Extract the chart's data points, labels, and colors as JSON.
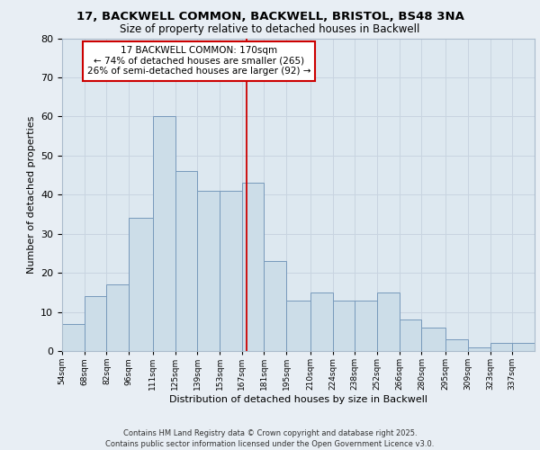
{
  "title_line1": "17, BACKWELL COMMON, BACKWELL, BRISTOL, BS48 3NA",
  "title_line2": "Size of property relative to detached houses in Backwell",
  "xlabel": "Distribution of detached houses by size in Backwell",
  "ylabel": "Number of detached properties",
  "footer": "Contains HM Land Registry data © Crown copyright and database right 2025.\nContains public sector information licensed under the Open Government Licence v3.0.",
  "annotation_title": "17 BACKWELL COMMON: 170sqm",
  "annotation_line2": "← 74% of detached houses are smaller (265)",
  "annotation_line3": "26% of semi-detached houses are larger (92) →",
  "property_size": 170,
  "bar_left_edges": [
    54,
    68,
    82,
    96,
    111,
    125,
    139,
    153,
    167,
    181,
    195,
    210,
    224,
    238,
    252,
    266,
    280,
    295,
    309,
    323,
    337
  ],
  "bar_heights": [
    7,
    14,
    17,
    34,
    60,
    46,
    41,
    41,
    43,
    23,
    13,
    15,
    13,
    13,
    15,
    8,
    6,
    3,
    1,
    2,
    2
  ],
  "bar_color": "#ccdde8",
  "bar_edge_color": "#7799bb",
  "vline_x": 170,
  "vline_color": "#cc0000",
  "grid_color": "#c8d4e0",
  "bg_color": "#dde8f0",
  "fig_bg_color": "#e8eef4",
  "ylim": [
    0,
    80
  ],
  "yticks": [
    0,
    10,
    20,
    30,
    40,
    50,
    60,
    70,
    80
  ],
  "annotation_box_color": "#ffffff",
  "annotation_border_color": "#cc0000",
  "tick_labels": [
    "54sqm",
    "68sqm",
    "82sqm",
    "96sqm",
    "111sqm",
    "125sqm",
    "139sqm",
    "153sqm",
    "167sqm",
    "181sqm",
    "195sqm",
    "210sqm",
    "224sqm",
    "238sqm",
    "252sqm",
    "266sqm",
    "280sqm",
    "295sqm",
    "309sqm",
    "323sqm",
    "337sqm"
  ]
}
